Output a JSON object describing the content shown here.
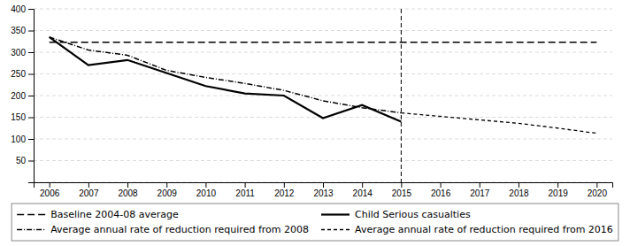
{
  "chart_data": {
    "type": "line",
    "series": [
      {
        "name": "Baseline 2004-08 average",
        "color": "#000000",
        "line_style": "longdash",
        "x": [
          2006,
          2020
        ],
        "values": [
          323,
          323
        ]
      },
      {
        "name": "Average annual rate of reduction required from 2008",
        "color": "#000000",
        "line_style": "dashdot",
        "x": [
          2006,
          2007,
          2008,
          2009,
          2010,
          2011,
          2012,
          2013,
          2014,
          2015
        ],
        "values": [
          335,
          305,
          293,
          258,
          242,
          228,
          212,
          188,
          172,
          160
        ]
      },
      {
        "name": "Child Serious casualties",
        "color": "#000000",
        "line_style": "solid",
        "x": [
          2006,
          2007,
          2008,
          2009,
          2010,
          2011,
          2012,
          2013,
          2014,
          2015
        ],
        "values": [
          335,
          270,
          282,
          252,
          222,
          205,
          200,
          148,
          178,
          140
        ]
      },
      {
        "name": "Average annual rate of reduction required from 2016",
        "color": "#000000",
        "line_style": "dashed",
        "x": [
          2015,
          2016,
          2017,
          2018,
          2019,
          2020
        ],
        "values": [
          160,
          152,
          144,
          136,
          125,
          113
        ]
      }
    ],
    "annotations": [
      {
        "x": 2015
      }
    ],
    "xlim": [
      2005.6,
      2020.4
    ],
    "xticks": [
      2006,
      2007,
      2008,
      2009,
      2010,
      2011,
      2012,
      2013,
      2014,
      2015,
      2016,
      2017,
      2018,
      2019,
      2020
    ],
    "ylim": [
      0,
      400
    ],
    "yticks": [
      {
        "value": 0,
        "label": null
      },
      50,
      100,
      150,
      200,
      250,
      300,
      350,
      400
    ],
    "grid": true,
    "legend": "bottom"
  }
}
